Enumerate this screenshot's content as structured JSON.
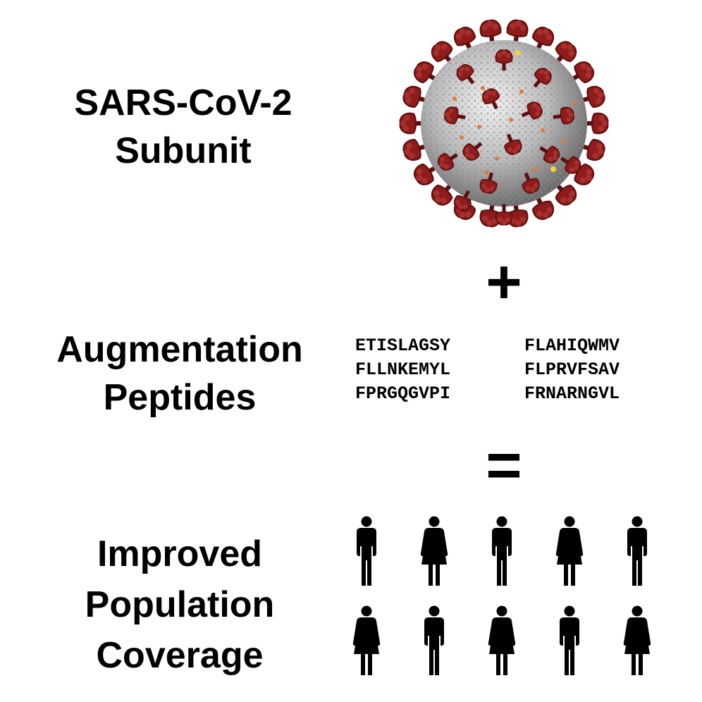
{
  "virus_label": [
    "SARS-CoV-2",
    "Subunit"
  ],
  "peptides_label": [
    "Augmentation",
    "Peptides"
  ],
  "coverage_label": [
    "Improved",
    "Population",
    "Coverage"
  ],
  "operators": {
    "plus": "+",
    "equals": "="
  },
  "peptides": {
    "left": [
      "ETISLAGSY",
      "FLLNKEMYL",
      "FPRGQGVPI"
    ],
    "right": [
      "FLAHIQWMV",
      "FLPRVFSAV",
      "FRNARNGVL"
    ]
  },
  "people": {
    "row1": [
      "male",
      "female",
      "male",
      "female",
      "male"
    ],
    "row2": [
      "female",
      "male",
      "female",
      "male",
      "female"
    ]
  },
  "colors": {
    "spike": "#8e1c1c",
    "spike_dark": "#5e0e0e",
    "virion_light": "#d9d9d9",
    "virion_dark": "#7a7a7a",
    "protein_orange": "#e07a3a",
    "protein_yellow": "#f2d43a"
  }
}
